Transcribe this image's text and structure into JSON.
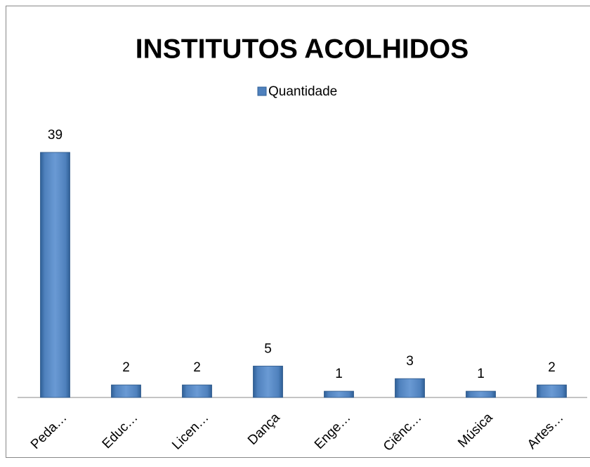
{
  "chart_data": {
    "type": "bar",
    "title": "INSTITUTOS ACOLHIDOS",
    "categories": [
      "Peda…",
      "Educ…",
      "Licen…",
      "Dança",
      "Enge…",
      "Ciênc…",
      "Música",
      "Artes…"
    ],
    "series": [
      {
        "name": "Quantidade",
        "color": "#4f81bd",
        "values": [
          39,
          2,
          2,
          5,
          1,
          3,
          1,
          2
        ]
      }
    ],
    "ylim": [
      0,
      40
    ],
    "legend": "top",
    "data_labels": true
  }
}
